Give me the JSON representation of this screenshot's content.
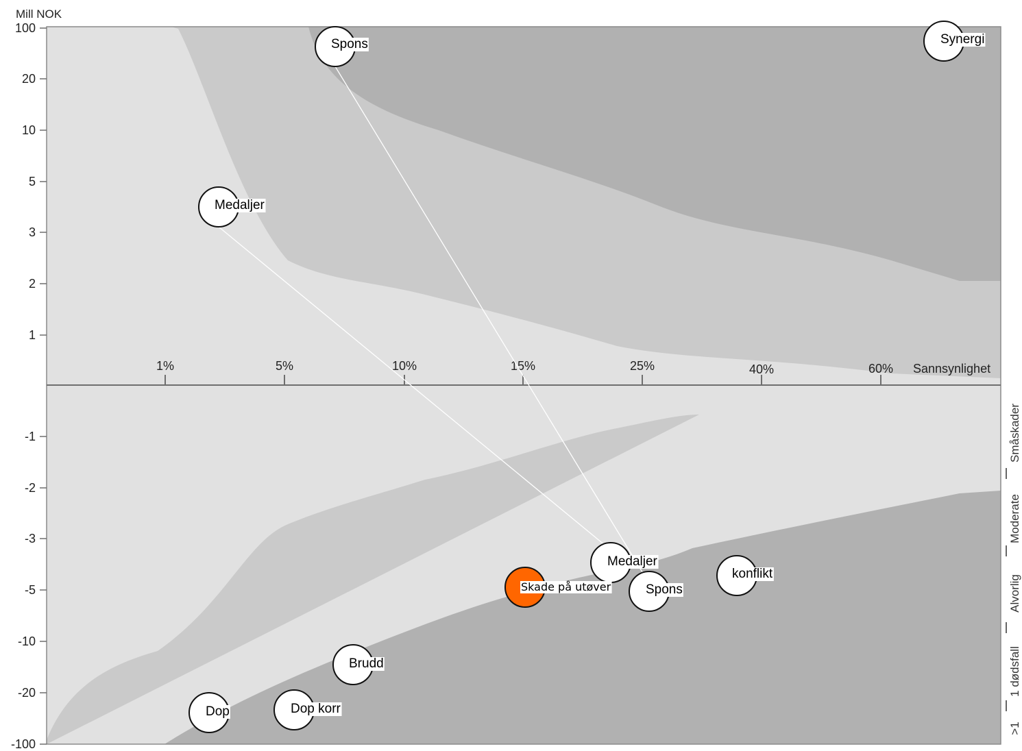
{
  "chart_data": {
    "type": "scatter",
    "ylabel": "Mill NOK",
    "xlabel": "Sannsynlighet",
    "x_ticks": [
      "1%",
      "5%",
      "10%",
      "15%",
      "25%",
      "40%",
      "60%"
    ],
    "y_ticks_top": [
      "100",
      "20",
      "10",
      "5",
      "3",
      "2",
      "1"
    ],
    "y_ticks_bottom": [
      "-1",
      "-2",
      "-3",
      "-5",
      "-10",
      "-20",
      "-100"
    ],
    "severity_categories": [
      "Småskader",
      "Moderate",
      "Alvorlig",
      "1 dødsfall",
      ">1"
    ],
    "colors": {
      "zone_light": "#e1e1e1",
      "zone_mid": "#cacaca",
      "zone_dark": "#b1b1b1",
      "node_fill": "#ffffff",
      "highlight_fill": "#ff6600",
      "connector": "#ffffff"
    },
    "points": [
      {
        "label": "Spons",
        "x": "7%",
        "y": 75,
        "highlight": false
      },
      {
        "label": "Synergi",
        "x": "80%",
        "y": 80,
        "highlight": false
      },
      {
        "label": "Medaljer",
        "x": "2.5%",
        "y": 3.5,
        "highlight": false
      },
      {
        "label": "Medaljer",
        "x": "22%",
        "y": -4,
        "highlight": false
      },
      {
        "label": "Spons",
        "x": "26%",
        "y": -5.5,
        "highlight": false
      },
      {
        "label": "konflikt",
        "x": "38%",
        "y": -4.5,
        "highlight": false
      },
      {
        "label": "Skade på utøver",
        "x": "15%",
        "y": -5,
        "highlight": true
      },
      {
        "label": "Brudd",
        "x": "8%",
        "y": -15,
        "highlight": false
      },
      {
        "label": "Dop",
        "x": "2%",
        "y": -40,
        "highlight": false
      },
      {
        "label": "Dop korr",
        "x": "5%",
        "y": -35,
        "highlight": false
      }
    ],
    "connections": [
      {
        "from": "Spons",
        "to": "Spons"
      },
      {
        "from": "Medaljer",
        "to": "Medaljer"
      }
    ]
  }
}
